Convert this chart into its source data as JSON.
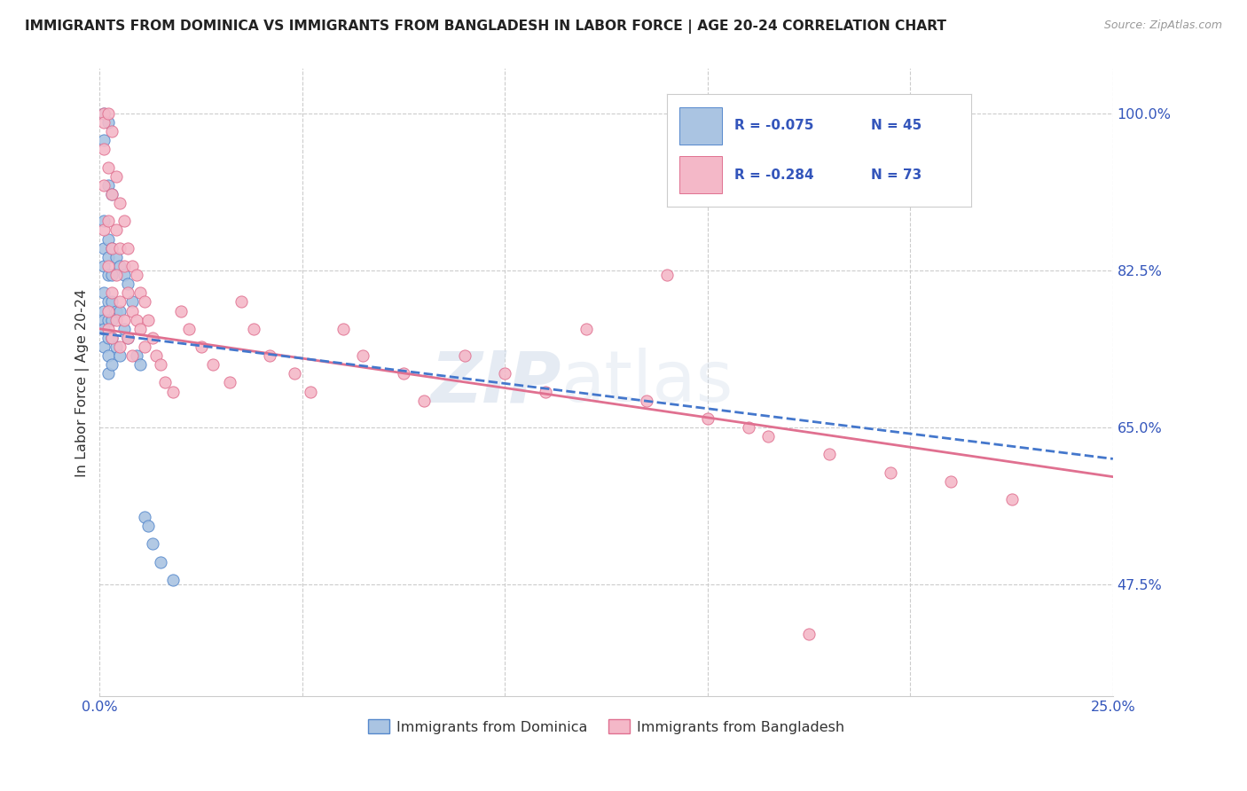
{
  "title": "IMMIGRANTS FROM DOMINICA VS IMMIGRANTS FROM BANGLADESH IN LABOR FORCE | AGE 20-24 CORRELATION CHART",
  "source": "Source: ZipAtlas.com",
  "ylabel": "In Labor Force | Age 20-24",
  "xlim": [
    0.0,
    0.25
  ],
  "ylim": [
    0.35,
    1.05
  ],
  "x_tick_positions": [
    0.0,
    0.05,
    0.1,
    0.15,
    0.2,
    0.25
  ],
  "x_tick_labels": [
    "0.0%",
    "",
    "",
    "",
    "",
    "25.0%"
  ],
  "y_tick_vals_right": [
    1.0,
    0.825,
    0.65,
    0.475
  ],
  "y_tick_labels_right": [
    "100.0%",
    "82.5%",
    "65.0%",
    "47.5%"
  ],
  "dominica_color": "#aac4e2",
  "bangladesh_color": "#f4b8c8",
  "dominica_edge": "#5588cc",
  "bangladesh_edge": "#e07090",
  "trend_dominica_color": "#4477cc",
  "trend_bangladesh_color": "#e07090",
  "R_dominica": -0.075,
  "N_dominica": 45,
  "R_bangladesh": -0.284,
  "N_bangladesh": 73,
  "legend_text_color": "#3355bb",
  "grid_color": "#cccccc",
  "watermark_color": "#d0dcea",
  "dominica_x": [
    0.001,
    0.001,
    0.001,
    0.001,
    0.001,
    0.001,
    0.001,
    0.001,
    0.001,
    0.001,
    0.002,
    0.002,
    0.002,
    0.002,
    0.002,
    0.002,
    0.002,
    0.002,
    0.002,
    0.002,
    0.003,
    0.003,
    0.003,
    0.003,
    0.003,
    0.003,
    0.003,
    0.004,
    0.004,
    0.004,
    0.005,
    0.005,
    0.005,
    0.006,
    0.006,
    0.007,
    0.007,
    0.008,
    0.009,
    0.01,
    0.011,
    0.012,
    0.013,
    0.015,
    0.018
  ],
  "dominica_y": [
    1.0,
    0.97,
    0.88,
    0.85,
    0.83,
    0.8,
    0.78,
    0.77,
    0.76,
    0.74,
    0.99,
    0.92,
    0.86,
    0.84,
    0.82,
    0.79,
    0.77,
    0.75,
    0.73,
    0.71,
    0.91,
    0.85,
    0.82,
    0.79,
    0.77,
    0.75,
    0.72,
    0.84,
    0.78,
    0.74,
    0.83,
    0.78,
    0.73,
    0.82,
    0.76,
    0.81,
    0.75,
    0.79,
    0.73,
    0.72,
    0.55,
    0.54,
    0.52,
    0.5,
    0.48
  ],
  "bangladesh_x": [
    0.001,
    0.001,
    0.001,
    0.001,
    0.001,
    0.002,
    0.002,
    0.002,
    0.002,
    0.002,
    0.002,
    0.003,
    0.003,
    0.003,
    0.003,
    0.003,
    0.004,
    0.004,
    0.004,
    0.004,
    0.005,
    0.005,
    0.005,
    0.005,
    0.006,
    0.006,
    0.006,
    0.007,
    0.007,
    0.007,
    0.008,
    0.008,
    0.008,
    0.009,
    0.009,
    0.01,
    0.01,
    0.011,
    0.011,
    0.012,
    0.013,
    0.014,
    0.015,
    0.016,
    0.018,
    0.02,
    0.022,
    0.025,
    0.028,
    0.032,
    0.035,
    0.038,
    0.042,
    0.048,
    0.052,
    0.06,
    0.065,
    0.075,
    0.08,
    0.09,
    0.1,
    0.11,
    0.12,
    0.135,
    0.15,
    0.165,
    0.18,
    0.195,
    0.21,
    0.225,
    0.14,
    0.16,
    0.175
  ],
  "bangladesh_y": [
    1.0,
    0.99,
    0.96,
    0.92,
    0.87,
    1.0,
    0.94,
    0.88,
    0.83,
    0.78,
    0.76,
    0.98,
    0.91,
    0.85,
    0.8,
    0.75,
    0.93,
    0.87,
    0.82,
    0.77,
    0.9,
    0.85,
    0.79,
    0.74,
    0.88,
    0.83,
    0.77,
    0.85,
    0.8,
    0.75,
    0.83,
    0.78,
    0.73,
    0.82,
    0.77,
    0.8,
    0.76,
    0.79,
    0.74,
    0.77,
    0.75,
    0.73,
    0.72,
    0.7,
    0.69,
    0.78,
    0.76,
    0.74,
    0.72,
    0.7,
    0.79,
    0.76,
    0.73,
    0.71,
    0.69,
    0.76,
    0.73,
    0.71,
    0.68,
    0.73,
    0.71,
    0.69,
    0.76,
    0.68,
    0.66,
    0.64,
    0.62,
    0.6,
    0.59,
    0.57,
    0.82,
    0.65,
    0.42
  ],
  "trend_dom_x0": 0.0,
  "trend_dom_y0": 0.755,
  "trend_dom_x1": 0.25,
  "trend_dom_y1": 0.615,
  "trend_ban_x0": 0.0,
  "trend_ban_y0": 0.76,
  "trend_ban_x1": 0.25,
  "trend_ban_y1": 0.595
}
